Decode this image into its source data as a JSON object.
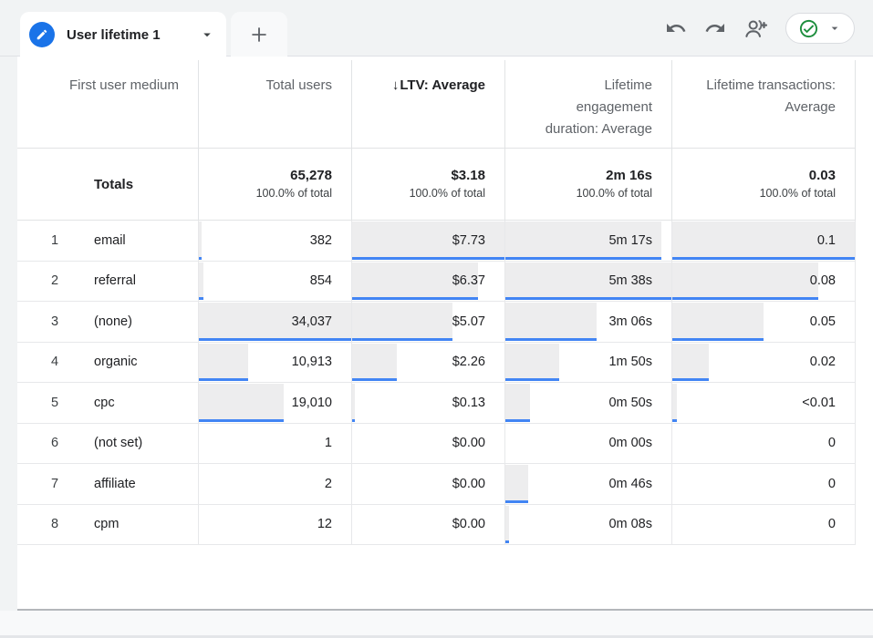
{
  "tab_bar": {
    "active_tab": {
      "label": "User lifetime 1",
      "edit_icon": "pencil",
      "dropdown_icon": "caret-down"
    },
    "add_tab_icon": "plus"
  },
  "toolbar": {
    "undo_icon": "undo-arrow",
    "redo_icon": "redo-arrow",
    "share_icon": "person-add",
    "status_button": {
      "icon": "check-circle",
      "dropdown_icon": "caret-down"
    }
  },
  "colors": {
    "accent_blue": "#1a73e8",
    "bar_blue": "#4285f4",
    "bar_gray": "#ededee",
    "status_green": "#1e8e3e",
    "strip_gray": "#f1f3f4"
  },
  "table": {
    "sort_icon": "↓",
    "columns": [
      {
        "label": "First user medium",
        "sorted": false
      },
      {
        "label": "Total users",
        "sorted": false
      },
      {
        "label": "LTV: Average",
        "sorted": true
      },
      {
        "label": "Lifetime engagement duration: Average",
        "sorted": false
      },
      {
        "label": "Lifetime transactions: Average",
        "sorted": false
      }
    ],
    "totals": {
      "label": "Totals",
      "values": [
        {
          "value": "65,278",
          "share": "100.0% of total"
        },
        {
          "value": "$3.18",
          "share": "100.0% of total"
        },
        {
          "value": "2m 16s",
          "share": "100.0% of total"
        },
        {
          "value": "0.03",
          "share": "100.0% of total"
        }
      ]
    },
    "rows": [
      {
        "index": "1",
        "dimension": "email",
        "cells": [
          {
            "value": "382",
            "bar": 2
          },
          {
            "value": "$7.73",
            "bar": 100
          },
          {
            "value": "5m 17s",
            "bar": 93.8
          },
          {
            "value": "0.1",
            "bar": 100
          }
        ]
      },
      {
        "index": "2",
        "dimension": "referral",
        "cells": [
          {
            "value": "854",
            "bar": 2.8
          },
          {
            "value": "$6.37",
            "bar": 82.4
          },
          {
            "value": "5m 38s",
            "bar": 100
          },
          {
            "value": "0.08",
            "bar": 80
          }
        ]
      },
      {
        "index": "3",
        "dimension": "(none)",
        "cells": [
          {
            "value": "34,037",
            "bar": 100
          },
          {
            "value": "$5.07",
            "bar": 65.6
          },
          {
            "value": "3m 06s",
            "bar": 55
          },
          {
            "value": "0.05",
            "bar": 50
          }
        ]
      },
      {
        "index": "4",
        "dimension": "organic",
        "cells": [
          {
            "value": "10,913",
            "bar": 32.1
          },
          {
            "value": "$2.26",
            "bar": 29.2
          },
          {
            "value": "1m 50s",
            "bar": 32.5
          },
          {
            "value": "0.02",
            "bar": 20
          }
        ]
      },
      {
        "index": "5",
        "dimension": "cpc",
        "cells": [
          {
            "value": "19,010",
            "bar": 55.9
          },
          {
            "value": "$0.13",
            "bar": 2
          },
          {
            "value": "0m 50s",
            "bar": 14.8
          },
          {
            "value": "<0.01",
            "bar": 2.5
          }
        ]
      },
      {
        "index": "6",
        "dimension": "(not set)",
        "cells": [
          {
            "value": "1",
            "bar": 0
          },
          {
            "value": "$0.00",
            "bar": 0
          },
          {
            "value": "0m 00s",
            "bar": 0
          },
          {
            "value": "0",
            "bar": 0
          }
        ]
      },
      {
        "index": "7",
        "dimension": "affiliate",
        "cells": [
          {
            "value": "2",
            "bar": 0
          },
          {
            "value": "$0.00",
            "bar": 0
          },
          {
            "value": "0m 46s",
            "bar": 13.6
          },
          {
            "value": "0",
            "bar": 0
          }
        ]
      },
      {
        "index": "8",
        "dimension": "cpm",
        "cells": [
          {
            "value": "12",
            "bar": 0
          },
          {
            "value": "$0.00",
            "bar": 0
          },
          {
            "value": "0m 08s",
            "bar": 2.4
          },
          {
            "value": "0",
            "bar": 0
          }
        ]
      }
    ]
  }
}
